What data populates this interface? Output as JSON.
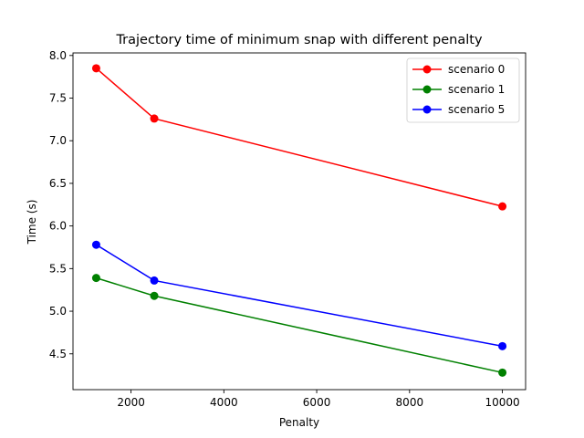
{
  "chart_data": {
    "type": "line",
    "title": "Trajectory time of minimum snap with different penalty",
    "xlabel": "Penalty",
    "ylabel": "Time (s)",
    "xlim": [
      750,
      10500
    ],
    "ylim": [
      4.08,
      8.03
    ],
    "x_ticks": [
      2000,
      4000,
      6000,
      8000,
      10000
    ],
    "y_ticks": [
      4.5,
      5.0,
      5.5,
      6.0,
      6.5,
      7.0,
      7.5,
      8.0
    ],
    "x_tick_labels": [
      "2000",
      "4000",
      "6000",
      "8000",
      "10000"
    ],
    "y_tick_labels": [
      "4.5",
      "5.0",
      "5.5",
      "6.0",
      "6.5",
      "7.0",
      "7.5",
      "8.0"
    ],
    "grid": false,
    "legend_position": "top-right",
    "x": [
      1250,
      2500,
      10000
    ],
    "series": [
      {
        "name": "scenario 0",
        "color": "#ff0000",
        "values": [
          7.85,
          7.26,
          6.23
        ]
      },
      {
        "name": "scenario 1",
        "color": "#008000",
        "values": [
          5.39,
          5.18,
          4.28
        ]
      },
      {
        "name": "scenario 5",
        "color": "#0000ff",
        "values": [
          5.78,
          5.36,
          4.59
        ]
      }
    ]
  }
}
